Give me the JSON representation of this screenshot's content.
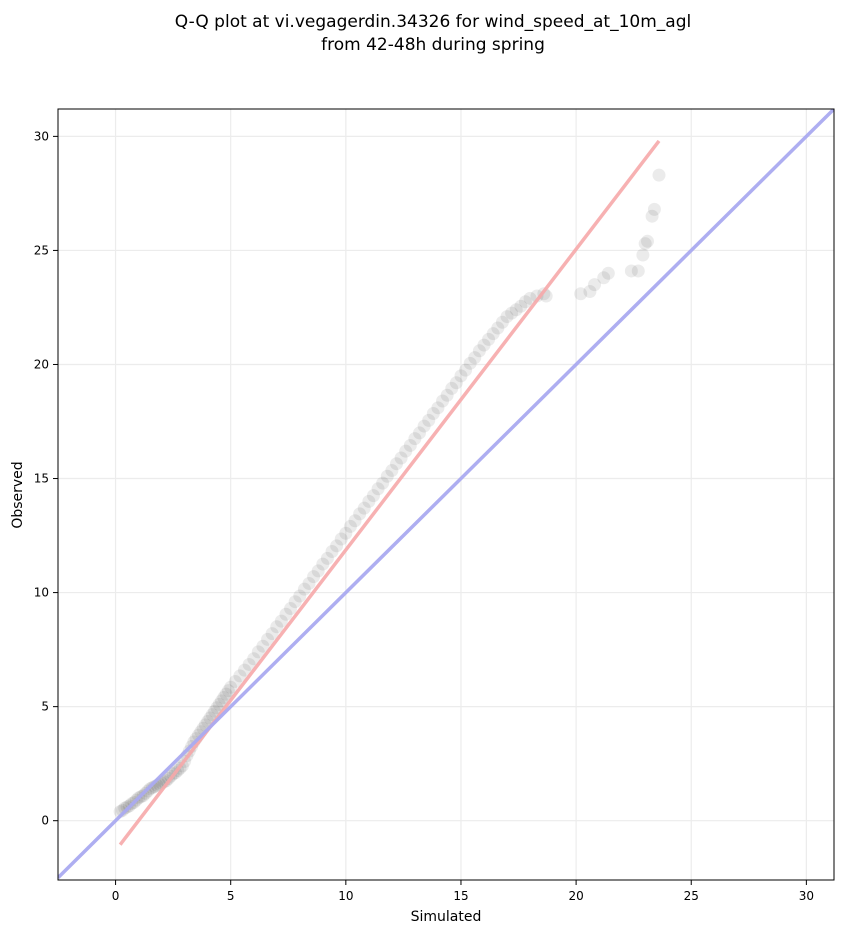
{
  "chart_data": {
    "type": "scatter",
    "title_line1": "Q-Q plot at vi.vegagerdin.34326 for wind_speed_at_10m_agl",
    "title_line2": "from 42-48h during spring",
    "xlabel": "Simulated",
    "ylabel": "Observed",
    "xlim": [
      -2.5,
      31.2
    ],
    "ylim": [
      -2.6,
      31.2
    ],
    "xticks": [
      "0",
      "5",
      "10",
      "15",
      "20",
      "25",
      "30"
    ],
    "yticks": [
      "0",
      "5",
      "10",
      "15",
      "20",
      "25",
      "30"
    ],
    "grid": true,
    "reference_line": {
      "color": "#aaaaf0",
      "from": [
        -2.5,
        -2.5
      ],
      "to": [
        31.2,
        31.2
      ]
    },
    "fit_line": {
      "color": "#f6a8aa",
      "from": [
        0.2,
        -1.05
      ],
      "to": [
        23.6,
        29.8
      ]
    },
    "point_color": "#000000",
    "series": [
      {
        "x": [
          0.2,
          0.3,
          0.4,
          0.5,
          0.6,
          0.7,
          0.8,
          0.9,
          1.0,
          1.1,
          1.2,
          1.3,
          1.4,
          1.5,
          1.6,
          1.7,
          1.8,
          1.9,
          2.0,
          2.1,
          2.2,
          2.3,
          2.4,
          2.5,
          2.6,
          2.7,
          2.8,
          2.9,
          3.0,
          3.1,
          3.2,
          3.3,
          3.4,
          3.5,
          3.6,
          3.7,
          3.8,
          3.9,
          4.0,
          4.1,
          4.2,
          4.3,
          4.4,
          4.5,
          4.6,
          4.7,
          4.8,
          4.9,
          5.0,
          5.2,
          5.4,
          5.6,
          5.8,
          6.0,
          6.2,
          6.4,
          6.6,
          6.8,
          7.0,
          7.2,
          7.4,
          7.6,
          7.8,
          8.0,
          8.2,
          8.4,
          8.6,
          8.8,
          9.0,
          9.2,
          9.4,
          9.6,
          9.8,
          10.0,
          10.2,
          10.4,
          10.6,
          10.8,
          11.0,
          11.2,
          11.4,
          11.6,
          11.8,
          12.0,
          12.2,
          12.4,
          12.6,
          12.8,
          13.0,
          13.2,
          13.4,
          13.6,
          13.8,
          14.0,
          14.2,
          14.4,
          14.6,
          14.8,
          15.0,
          15.2,
          15.4,
          15.6,
          15.8,
          16.0,
          16.2,
          16.4,
          16.6,
          16.8,
          17.0,
          17.2,
          17.4,
          17.6,
          17.8,
          18.0,
          18.3,
          18.6,
          18.7,
          20.2,
          20.6,
          20.8,
          21.2,
          21.4,
          22.4,
          22.7,
          22.9,
          23.0,
          23.1,
          23.3,
          23.4,
          23.6
        ],
        "y": [
          0.4,
          0.45,
          0.55,
          0.6,
          0.65,
          0.75,
          0.8,
          0.9,
          1.0,
          1.05,
          1.1,
          1.2,
          1.3,
          1.4,
          1.45,
          1.5,
          1.55,
          1.6,
          1.65,
          1.7,
          1.75,
          1.85,
          1.95,
          2.05,
          2.1,
          2.2,
          2.3,
          2.4,
          2.6,
          2.85,
          3.05,
          3.25,
          3.45,
          3.6,
          3.75,
          3.9,
          4.05,
          4.2,
          4.35,
          4.5,
          4.65,
          4.8,
          4.95,
          5.1,
          5.25,
          5.4,
          5.55,
          5.7,
          5.85,
          6.1,
          6.35,
          6.6,
          6.85,
          7.1,
          7.4,
          7.65,
          7.95,
          8.2,
          8.5,
          8.75,
          9.05,
          9.3,
          9.6,
          9.85,
          10.15,
          10.4,
          10.7,
          10.95,
          11.25,
          11.5,
          11.8,
          12.05,
          12.35,
          12.6,
          12.9,
          13.15,
          13.45,
          13.7,
          14.0,
          14.25,
          14.55,
          14.8,
          15.1,
          15.35,
          15.65,
          15.9,
          16.2,
          16.45,
          16.75,
          17.0,
          17.3,
          17.55,
          17.85,
          18.1,
          18.4,
          18.65,
          18.95,
          19.2,
          19.5,
          19.75,
          20.05,
          20.3,
          20.6,
          20.85,
          21.1,
          21.35,
          21.6,
          21.85,
          22.1,
          22.25,
          22.4,
          22.55,
          22.75,
          22.9,
          23.0,
          23.1,
          23.0,
          23.1,
          23.2,
          23.5,
          23.8,
          24.0,
          24.1,
          24.1,
          24.8,
          25.3,
          25.4,
          26.5,
          26.8,
          28.3
        ]
      }
    ]
  }
}
